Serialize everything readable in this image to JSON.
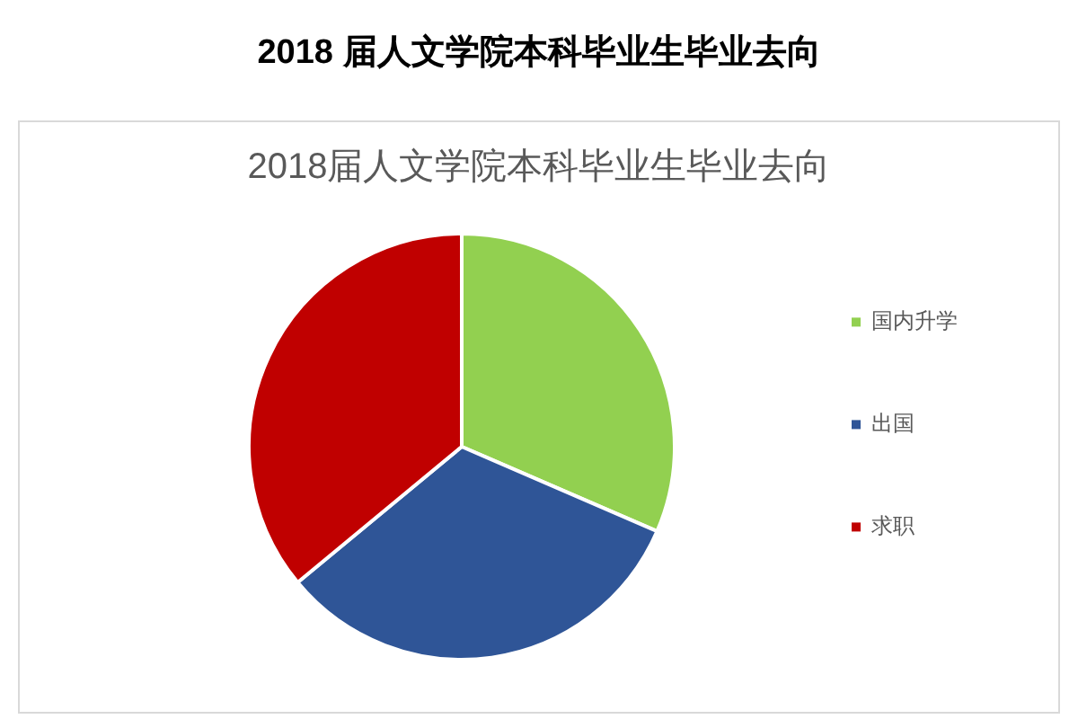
{
  "chart_data": {
    "type": "pie",
    "title": "2018 届人文学院本科毕业生毕业去向",
    "subtitle": "2018届人文学院本科毕业生毕业去向",
    "categories": [
      "国内升学",
      "出国",
      "求职"
    ],
    "values": [
      31.5,
      32.5,
      36
    ],
    "colors": [
      "#92d050",
      "#2f5597",
      "#c00000"
    ],
    "legend": "right"
  }
}
